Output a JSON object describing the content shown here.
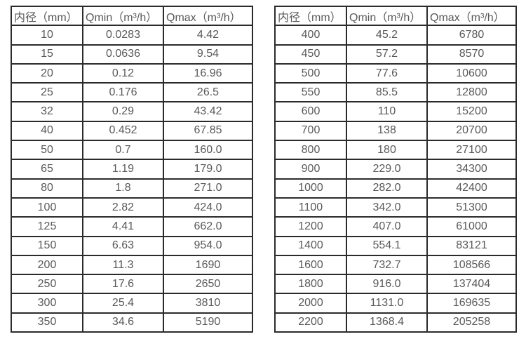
{
  "page": {
    "background": "#ffffff",
    "border_color": "#2b2b2b",
    "text_color": "#595959"
  },
  "tables": [
    {
      "name": "flow-table-small-diameters",
      "headers": [
        "内径（mm）",
        "Qmin（m³/h）",
        "Qmax（m³/h）"
      ],
      "rows": [
        [
          "10",
          "0.0283",
          "4.42"
        ],
        [
          "15",
          "0.0636",
          "9.54"
        ],
        [
          "20",
          "0.12",
          "16.96"
        ],
        [
          "25",
          "0.176",
          "26.5"
        ],
        [
          "32",
          "0.29",
          "43.42"
        ],
        [
          "40",
          "0.452",
          "67.85"
        ],
        [
          "50",
          "0.7",
          "160.0"
        ],
        [
          "65",
          "1.19",
          "179.0"
        ],
        [
          "80",
          "1.8",
          "271.0"
        ],
        [
          "100",
          "2.82",
          "424.0"
        ],
        [
          "125",
          "4.41",
          "662.0"
        ],
        [
          "150",
          "6.63",
          "954.0"
        ],
        [
          "200",
          "11.3",
          "1690"
        ],
        [
          "250",
          "17.6",
          "2650"
        ],
        [
          "300",
          "25.4",
          "3810"
        ],
        [
          "350",
          "34.6",
          "5190"
        ]
      ]
    },
    {
      "name": "flow-table-large-diameters",
      "headers": [
        "内径（mm）",
        "Qmin（m³/h）",
        "Qmax（m³/h）"
      ],
      "rows": [
        [
          "400",
          "45.2",
          "6780"
        ],
        [
          "450",
          "57.2",
          "8570"
        ],
        [
          "500",
          "77.6",
          "10600"
        ],
        [
          "550",
          "85.5",
          "12800"
        ],
        [
          "600",
          "110",
          "15200"
        ],
        [
          "700",
          "138",
          "20700"
        ],
        [
          "800",
          "180",
          "27100"
        ],
        [
          "900",
          "229.0",
          "34300"
        ],
        [
          "1000",
          "282.0",
          "42400"
        ],
        [
          "1100",
          "342.0",
          "51300"
        ],
        [
          "1200",
          "407.0",
          "61000"
        ],
        [
          "1400",
          "554.1",
          "83121"
        ],
        [
          "1600",
          "732.7",
          "108566"
        ],
        [
          "1800",
          "916.0",
          "137404"
        ],
        [
          "2000",
          "1131.0",
          "169635"
        ],
        [
          "2200",
          "1368.4",
          "205258"
        ]
      ]
    }
  ]
}
